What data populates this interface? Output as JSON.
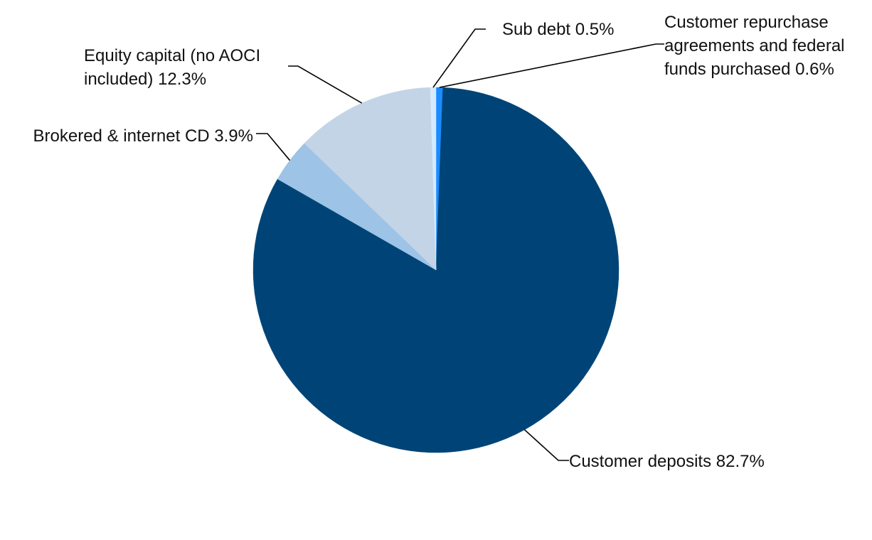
{
  "chart_data": {
    "type": "pie",
    "title": "",
    "start_angle_deg": 0,
    "direction": "clockwise",
    "legend": "none",
    "slices": [
      {
        "name": "Customer repurchase agreements and federal funds purchased",
        "value": 0.6,
        "label_lines": [
          "Customer repurchase",
          "agreements and federal",
          "funds purchased 0.6%"
        ],
        "color": "#1a8cff"
      },
      {
        "name": "Customer deposits",
        "value": 82.7,
        "label_lines": [
          "Customer deposits 82.7%"
        ],
        "color": "#004477"
      },
      {
        "name": "Brokered & internet CD",
        "value": 3.9,
        "label_lines": [
          "Brokered & internet CD 3.9%"
        ],
        "color": "#9dc3e6"
      },
      {
        "name": "Equity capital (no AOCI included)",
        "value": 12.3,
        "label_lines": [
          "Equity capital (no AOCI",
          "included) 12.3%"
        ],
        "color": "#c3d4e6"
      },
      {
        "name": "Sub debt",
        "value": 0.5,
        "label_lines": [
          "Sub debt 0.5%"
        ],
        "color": "#d4eaff"
      }
    ]
  }
}
